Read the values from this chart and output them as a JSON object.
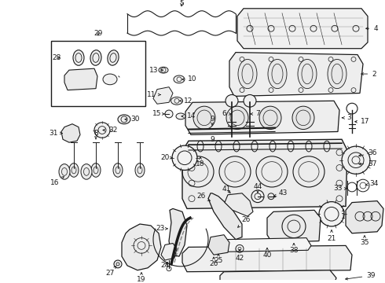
{
  "bg": "#ffffff",
  "lc": "#1a1a1a",
  "fs": 6.5,
  "figsize": [
    4.9,
    3.6
  ],
  "dpi": 100
}
